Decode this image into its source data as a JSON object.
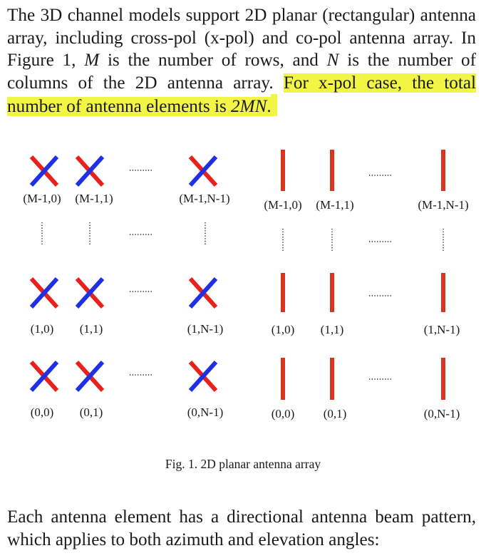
{
  "paragraph1": {
    "sentence1": "The 3D channel models support 2D planar (rectangular) antenna array, including cross-pol (x-pol) and co-pol antenna array.",
    "sentence2_a": "In Figure 1,",
    "var_M": "M",
    "sentence2_b": "is the number of rows, and",
    "var_N": "N",
    "sentence2_c": "is the number of columns of the 2D antenna array.",
    "highlight_a": "For x-pol case, the total number of antenna elements is",
    "highlight_math": "2MN",
    "highlight_end": "."
  },
  "figure": {
    "xpol_labels": {
      "row_top": [
        "(M-1,0)",
        "(M-1,1)",
        "(M-1,N-1)"
      ],
      "row_mid": [
        "(1,0)",
        "(1,1)",
        "(1,N-1)"
      ],
      "row_bot": [
        "(0,0)",
        "(0,1)",
        "(0,N-1)"
      ]
    },
    "copol_labels": {
      "row_top": [
        "(M-1,0)",
        "(M-1,1)",
        "(M-1,N-1)"
      ],
      "row_mid": [
        "(1,0)",
        "(1,1)",
        "(1,N-1)"
      ],
      "row_bot": [
        "(0,0)",
        "(0,1)",
        "(0,N-1)"
      ]
    },
    "colors": {
      "slant_plus": "#e8211c",
      "slant_minus": "#1f2fe6",
      "copol": "#d9341e"
    },
    "caption": "Fig. 1.  2D planar antenna array"
  },
  "paragraph2": {
    "text": "Each antenna element has a directional antenna beam pattern, which applies to both azimuth and elevation angles:"
  }
}
